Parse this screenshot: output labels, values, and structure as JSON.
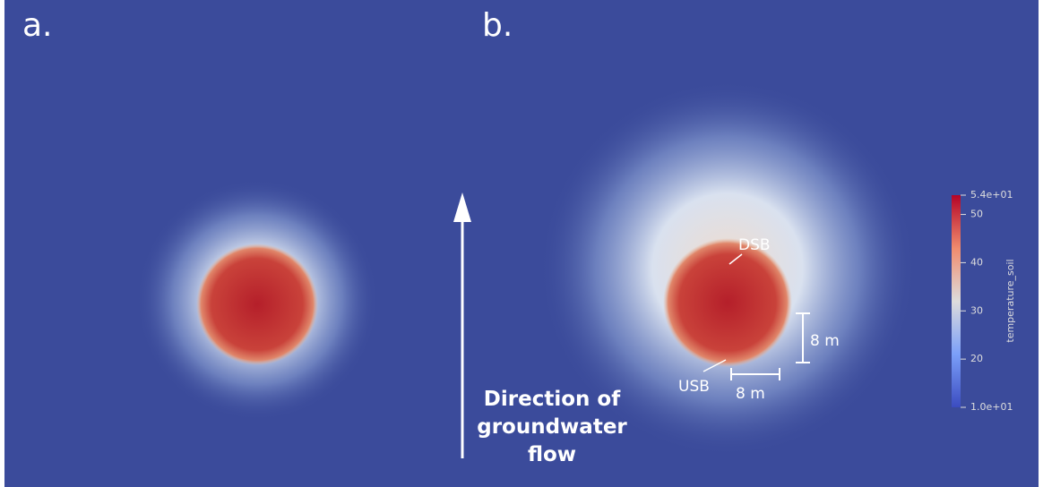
{
  "panels": [
    {
      "label": "a."
    },
    {
      "label": "b."
    }
  ],
  "annotations": {
    "dsb": "DSB",
    "usb": "USB",
    "scale_vertical": "8 m",
    "scale_horizontal": "8 m",
    "flow": [
      "Direction of",
      "groundwater",
      "flow"
    ]
  },
  "colorbar": {
    "title": "temperature_soil",
    "lim": [
      10,
      54
    ],
    "ticks": [
      {
        "value": 54,
        "label": "5.4e+01"
      },
      50,
      40,
      30,
      20,
      {
        "value": 10,
        "label": "1.0e+01"
      }
    ]
  }
}
